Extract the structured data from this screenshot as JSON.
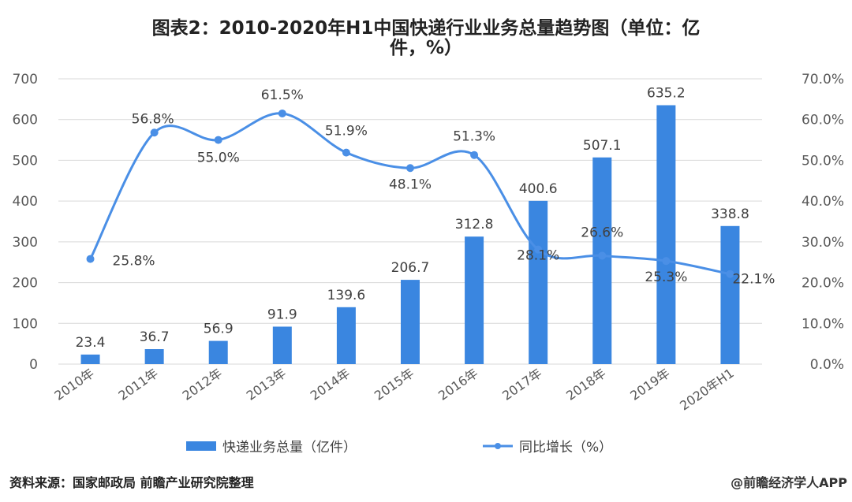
{
  "title_line1": "图表2：2010-2020年H1中国快递行业业务总量趋势图（单位：亿",
  "title_line2": "件，%）",
  "source": "资料来源：国家邮政局 前瞻产业研究院整理",
  "brand": "@前瞻经济学人APP",
  "colors": {
    "bar": "#3a86e0",
    "line": "#4a8fe6",
    "grid": "#d9d9d9",
    "text": "#595959"
  },
  "chart_data": {
    "type": "bar",
    "categories": [
      "2010年",
      "2011年",
      "2012年",
      "2013年",
      "2014年",
      "2015年",
      "2016年",
      "2017年",
      "2018年",
      "2019年",
      "2020年H1"
    ],
    "series": [
      {
        "name": "快递业务总量（亿件）",
        "type": "bar",
        "axis": "left",
        "values": [
          23.4,
          36.7,
          56.9,
          91.9,
          139.6,
          206.7,
          312.8,
          400.6,
          507.1,
          635.2,
          338.8
        ],
        "labels": [
          "23.4",
          "36.7",
          "56.9",
          "91.9",
          "139.6",
          "206.7",
          "312.8",
          "400.6",
          "507.1",
          "635.2",
          "338.8"
        ]
      },
      {
        "name": "同比增长（%）",
        "type": "line",
        "axis": "right",
        "values": [
          25.8,
          56.8,
          55.0,
          61.5,
          51.9,
          48.1,
          51.3,
          28.1,
          26.6,
          25.3,
          22.1
        ],
        "labels": [
          "25.8%",
          "56.8%",
          "55.0%",
          "61.5%",
          "51.9%",
          "48.1%",
          "51.3%",
          "28.1%",
          "26.6%",
          "25.3%",
          "22.1%"
        ]
      }
    ],
    "y_left": {
      "min": 0,
      "max": 700,
      "ticks": [
        "0",
        "100",
        "200",
        "300",
        "400",
        "500",
        "600",
        "700"
      ]
    },
    "y_right": {
      "min": 0,
      "max": 70,
      "ticks": [
        "0.0%",
        "10.0%",
        "20.0%",
        "30.0%",
        "40.0%",
        "50.0%",
        "60.0%",
        "70.0%"
      ]
    },
    "grid": true,
    "legend_position": "bottom"
  }
}
